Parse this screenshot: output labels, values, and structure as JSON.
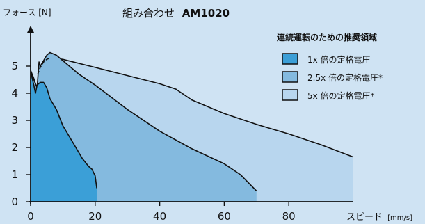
{
  "chart_data": {
    "type": "area",
    "title_prefix": "組み合わせ",
    "title_model": "AM1020",
    "ylabel": "フォース [N]",
    "xlabel_main": "スピード",
    "xlabel_unit": "[mm/s]",
    "xlim": [
      0,
      100
    ],
    "ylim": [
      0,
      6
    ],
    "x_ticks": [
      "0",
      "20",
      "40",
      "60",
      "80"
    ],
    "y_ticks": [
      "0",
      "1",
      "2",
      "3",
      "4",
      "5"
    ],
    "legend_title": "連続運転のための推奨領域",
    "legend_position": "top-right",
    "series": [
      {
        "name": "5x 倍の定格電圧*",
        "color": "#b8d6ee",
        "points": [
          [
            0,
            0
          ],
          [
            0,
            4.85
          ],
          [
            1,
            4.55
          ],
          [
            2,
            4.15
          ],
          [
            2.5,
            4.7
          ],
          [
            3.5,
            5.05
          ],
          [
            5,
            5.35
          ],
          [
            6,
            5.3
          ],
          [
            10,
            5.25
          ],
          [
            20,
            4.95
          ],
          [
            30,
            4.65
          ],
          [
            40,
            4.35
          ],
          [
            45,
            4.15
          ],
          [
            50,
            3.75
          ],
          [
            60,
            3.25
          ],
          [
            70,
            2.85
          ],
          [
            80,
            2.5
          ],
          [
            90,
            2.1
          ],
          [
            100,
            1.65
          ],
          [
            100,
            0
          ]
        ]
      },
      {
        "name": "2.5x 倍の定格電圧*",
        "color": "#84badf",
        "points": [
          [
            0,
            0
          ],
          [
            0,
            4.8
          ],
          [
            1,
            4.5
          ],
          [
            2,
            4.2
          ],
          [
            2.6,
            5.15
          ],
          [
            3,
            5.0
          ],
          [
            4,
            5.2
          ],
          [
            5,
            5.4
          ],
          [
            6,
            5.5
          ],
          [
            8,
            5.4
          ],
          [
            15,
            4.7
          ],
          [
            20,
            4.3
          ],
          [
            30,
            3.4
          ],
          [
            40,
            2.6
          ],
          [
            50,
            1.95
          ],
          [
            60,
            1.4
          ],
          [
            65,
            1.0
          ],
          [
            70,
            0.4
          ],
          [
            70,
            0
          ]
        ]
      },
      {
        "name": "1x 倍の定格電圧",
        "color": "#3b9fd7",
        "points": [
          [
            0,
            0
          ],
          [
            0,
            4.8
          ],
          [
            1,
            4.3
          ],
          [
            1.5,
            4.0
          ],
          [
            2,
            4.3
          ],
          [
            3,
            4.4
          ],
          [
            4,
            4.4
          ],
          [
            5,
            4.2
          ],
          [
            6,
            3.8
          ],
          [
            8,
            3.4
          ],
          [
            10,
            2.8
          ],
          [
            12,
            2.4
          ],
          [
            14,
            2.0
          ],
          [
            16,
            1.6
          ],
          [
            18,
            1.3
          ],
          [
            19,
            1.2
          ],
          [
            20,
            0.95
          ],
          [
            20.5,
            0.5
          ],
          [
            20.5,
            0
          ]
        ]
      }
    ],
    "dashed_segment": [
      [
        2.2,
        4.7
      ],
      [
        3,
        4.95
      ],
      [
        4,
        5.15
      ],
      [
        5,
        5.25
      ],
      [
        6,
        5.3
      ]
    ],
    "grid": false
  }
}
